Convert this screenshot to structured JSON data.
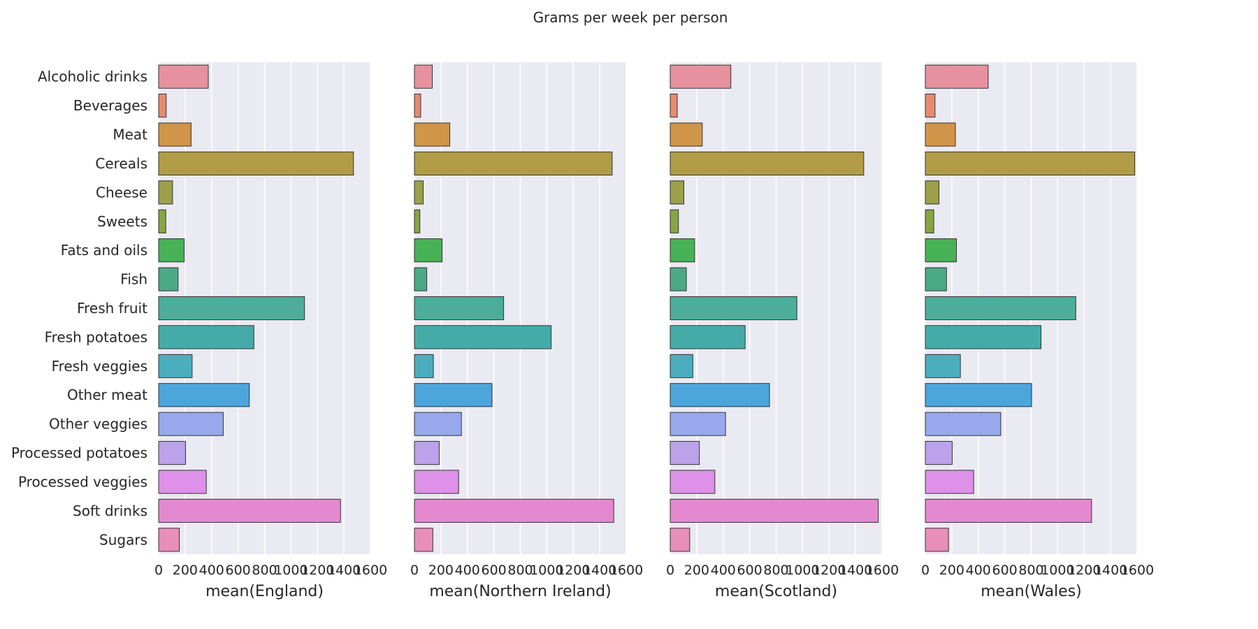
{
  "chart_data": {
    "type": "bar",
    "orientation": "horizontal",
    "title": "Grams per week per person",
    "categories": [
      "Alcoholic drinks",
      "Beverages",
      "Meat",
      "Cereals",
      "Cheese",
      "Sweets",
      "Fats and oils",
      "Fish",
      "Fresh fruit",
      "Fresh potatoes",
      "Fresh veggies",
      "Other meat",
      "Other veggies",
      "Processed potatoes",
      "Processed veggies",
      "Soft drinks",
      "Sugars"
    ],
    "xlim": [
      0,
      1600
    ],
    "xticks": [
      0,
      200,
      400,
      600,
      800,
      1000,
      1200,
      1400,
      1600
    ],
    "grid": true,
    "colors": [
      "#e8919e",
      "#e88a72",
      "#d09548",
      "#b19c48",
      "#9ba049",
      "#86a543",
      "#47b156",
      "#4aaa86",
      "#4cad9a",
      "#45aba8",
      "#4aaebf",
      "#4ca6dc",
      "#97a8ec",
      "#bba2ea",
      "#dd91e9",
      "#e489cf",
      "#e78fb9"
    ],
    "panels": [
      {
        "xlabel": "mean(England)",
        "values": [
          375,
          57,
          245,
          1472,
          105,
          54,
          193,
          147,
          1102,
          720,
          253,
          685,
          488,
          203,
          360,
          1374,
          156
        ]
      },
      {
        "xlabel": "mean(Northern Ireland)",
        "values": [
          135,
          47,
          267,
          1494,
          66,
          41,
          209,
          93,
          674,
          1033,
          143,
          586,
          355,
          187,
          334,
          1506,
          139
        ]
      },
      {
        "xlabel": "mean(Scotland)",
        "values": [
          458,
          53,
          242,
          1462,
          103,
          62,
          184,
          122,
          957,
          566,
          171,
          750,
          418,
          220,
          337,
          1572,
          147
        ]
      },
      {
        "xlabel": "mean(Wales)",
        "values": [
          475,
          73,
          227,
          1582,
          103,
          64,
          235,
          160,
          1137,
          874,
          265,
          803,
          570,
          203,
          365,
          1256,
          175
        ]
      }
    ]
  }
}
